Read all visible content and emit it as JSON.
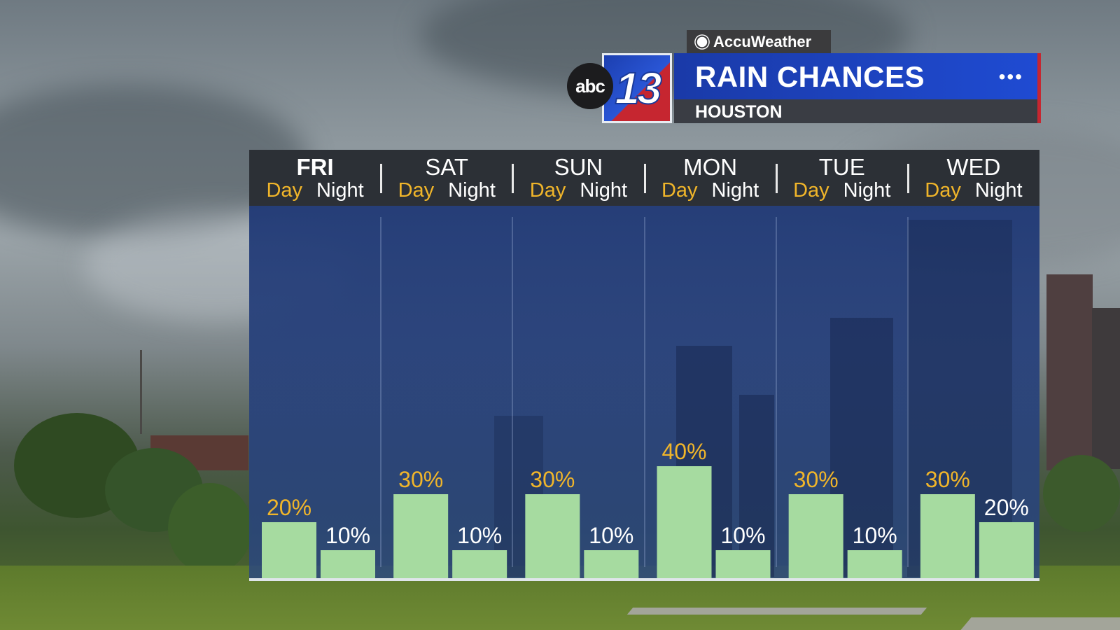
{
  "header": {
    "brand": "AccuWeather",
    "logo_abc": "abc",
    "logo_number": "13",
    "title": "RAIN CHANCES",
    "subtitle": "HOUSTON",
    "menu_dots": "•••"
  },
  "colors": {
    "bar": "#a6dba0",
    "day_label": "#f0b52a",
    "night_label": "#ffffff",
    "title_bar": "#1f4bd2",
    "accent_red": "#c62630",
    "panel_bg": "#213a76"
  },
  "chart_data": {
    "type": "bar",
    "title": "RAIN CHANCES",
    "ylabel": "",
    "xlabel": "",
    "ylim": [
      0,
      100
    ],
    "grid": false,
    "days": [
      {
        "name": "FRI",
        "bold": true,
        "day_label": "Day",
        "night_label": "Night",
        "day_value": 20,
        "night_value": 10,
        "day_text": "20%",
        "night_text": "10%"
      },
      {
        "name": "SAT",
        "bold": false,
        "day_label": "Day",
        "night_label": "Night",
        "day_value": 30,
        "night_value": 10,
        "day_text": "30%",
        "night_text": "10%"
      },
      {
        "name": "SUN",
        "bold": false,
        "day_label": "Day",
        "night_label": "Night",
        "day_value": 30,
        "night_value": 10,
        "day_text": "30%",
        "night_text": "10%"
      },
      {
        "name": "MON",
        "bold": false,
        "day_label": "Day",
        "night_label": "Night",
        "day_value": 40,
        "night_value": 10,
        "day_text": "40%",
        "night_text": "10%"
      },
      {
        "name": "TUE",
        "bold": false,
        "day_label": "Day",
        "night_label": "Night",
        "day_value": 30,
        "night_value": 10,
        "day_text": "30%",
        "night_text": "10%"
      },
      {
        "name": "WED",
        "bold": false,
        "day_label": "Day",
        "night_label": "Night",
        "day_value": 30,
        "night_value": 20,
        "day_text": "30%",
        "night_text": "20%"
      }
    ]
  }
}
